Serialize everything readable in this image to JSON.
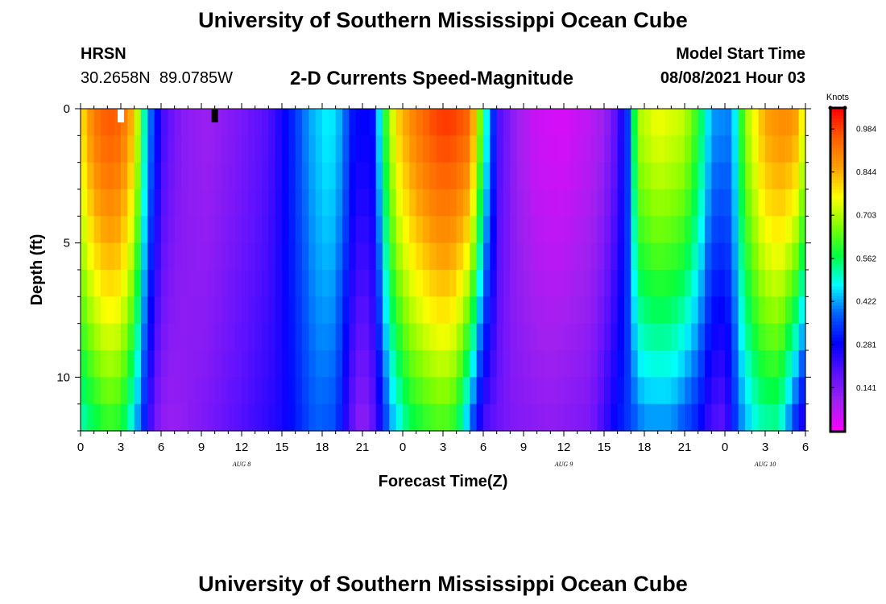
{
  "header": {
    "title": "University of Southern Mississippi Ocean Cube",
    "station": "HRSN",
    "coordinates": "30.2658N  89.0785W",
    "chart_title": "2-D Currents Speed-Magnitude",
    "model_start_label": "Model Start Time",
    "model_start_value": "08/08/2021 Hour 03"
  },
  "footer": {
    "title": "University of Southern Mississippi Ocean Cube"
  },
  "colors": {
    "colormap": [
      "#ff00ff",
      "#a020f0",
      "#5a10ff",
      "#0000ff",
      "#0060ff",
      "#00ffff",
      "#00ff40",
      "#80ff00",
      "#ffff00",
      "#ffa000",
      "#ff6000",
      "#ff0000"
    ]
  },
  "chart_data": {
    "type": "heatmap",
    "title": "2-D Currents Speed-Magnitude",
    "xlabel": "Forecast Time(Z)",
    "ylabel": "Depth (ft)",
    "x_tick_labels": [
      "0",
      "3",
      "6",
      "9",
      "12",
      "15",
      "18",
      "21",
      "0",
      "3",
      "6",
      "9",
      "12",
      "15",
      "18",
      "21",
      "0",
      "3",
      "6"
    ],
    "x_hours_range": [
      0,
      54
    ],
    "day_labels": [
      {
        "label": "AUG 8",
        "hour": 12
      },
      {
        "label": "AUG 9",
        "hour": 36
      },
      {
        "label": "AUG 10",
        "hour": 51
      }
    ],
    "y_tick_labels": [
      "0",
      "5",
      "10"
    ],
    "y_tick_values": [
      0,
      5,
      10
    ],
    "ylim": [
      0,
      12
    ],
    "colorbar": {
      "label": "Knots",
      "ticks": [
        "0.984",
        "0.844",
        "0.703",
        "0.562",
        "0.422",
        "0.281",
        "0.141"
      ],
      "tick_values": [
        0.984,
        0.844,
        0.703,
        0.562,
        0.422,
        0.281,
        0.141
      ],
      "range": [
        0,
        1.05
      ]
    },
    "markers": [
      {
        "hour": 3,
        "color": "white"
      },
      {
        "hour": 10,
        "color": "black"
      }
    ],
    "surface_speed_profile": [
      [
        0,
        0.78
      ],
      [
        1,
        0.92
      ],
      [
        2,
        0.97
      ],
      [
        3,
        0.95
      ],
      [
        4,
        0.82
      ],
      [
        4.8,
        0.5
      ],
      [
        5.5,
        0.32
      ],
      [
        6.3,
        0.2
      ],
      [
        7.5,
        0.13
      ],
      [
        9.5,
        0.1
      ],
      [
        12,
        0.15
      ],
      [
        14,
        0.2
      ],
      [
        15.5,
        0.3
      ],
      [
        17,
        0.42
      ],
      [
        18.5,
        0.48
      ],
      [
        19.5,
        0.42
      ],
      [
        20.3,
        0.3
      ],
      [
        21,
        0.28
      ],
      [
        21.8,
        0.3
      ],
      [
        22.5,
        0.55
      ],
      [
        23.5,
        0.8
      ],
      [
        25,
        0.92
      ],
      [
        26.5,
        0.99
      ],
      [
        27.5,
        1.0
      ],
      [
        29,
        0.95
      ],
      [
        29.8,
        0.65
      ],
      [
        30.5,
        0.4
      ],
      [
        31.2,
        0.2
      ],
      [
        32.5,
        0.1
      ],
      [
        34,
        0.05
      ],
      [
        36,
        0.04
      ],
      [
        38,
        0.07
      ],
      [
        39,
        0.1
      ],
      [
        40,
        0.2
      ],
      [
        40.8,
        0.35
      ],
      [
        41.5,
        0.7
      ],
      [
        43,
        0.76
      ],
      [
        45,
        0.72
      ],
      [
        46,
        0.6
      ],
      [
        47,
        0.42
      ],
      [
        48.5,
        0.4
      ],
      [
        49.5,
        0.68
      ],
      [
        51,
        0.86
      ],
      [
        52.5,
        0.9
      ],
      [
        53.4,
        0.86
      ],
      [
        54,
        0.72
      ]
    ],
    "bottom_speed_profile": [
      [
        0,
        0.5
      ],
      [
        1,
        0.55
      ],
      [
        2,
        0.6
      ],
      [
        3,
        0.58
      ],
      [
        4,
        0.45
      ],
      [
        4.8,
        0.3
      ],
      [
        5.5,
        0.15
      ],
      [
        6.5,
        0.1
      ],
      [
        9,
        0.14
      ],
      [
        12,
        0.2
      ],
      [
        15,
        0.26
      ],
      [
        17.5,
        0.38
      ],
      [
        19,
        0.36
      ],
      [
        20,
        0.2
      ],
      [
        21,
        0.1
      ],
      [
        22,
        0.2
      ],
      [
        23,
        0.4
      ],
      [
        24.5,
        0.55
      ],
      [
        26,
        0.6
      ],
      [
        27,
        0.62
      ],
      [
        28,
        0.58
      ],
      [
        29,
        0.38
      ],
      [
        30,
        0.2
      ],
      [
        32,
        0.14
      ],
      [
        35,
        0.12
      ],
      [
        38,
        0.15
      ],
      [
        40,
        0.3
      ],
      [
        42,
        0.4
      ],
      [
        44,
        0.4
      ],
      [
        46,
        0.3
      ],
      [
        47,
        0.2
      ],
      [
        48,
        0.18
      ],
      [
        49,
        0.38
      ],
      [
        50.5,
        0.5
      ],
      [
        52,
        0.52
      ],
      [
        53,
        0.35
      ],
      [
        54,
        0.2
      ]
    ]
  }
}
